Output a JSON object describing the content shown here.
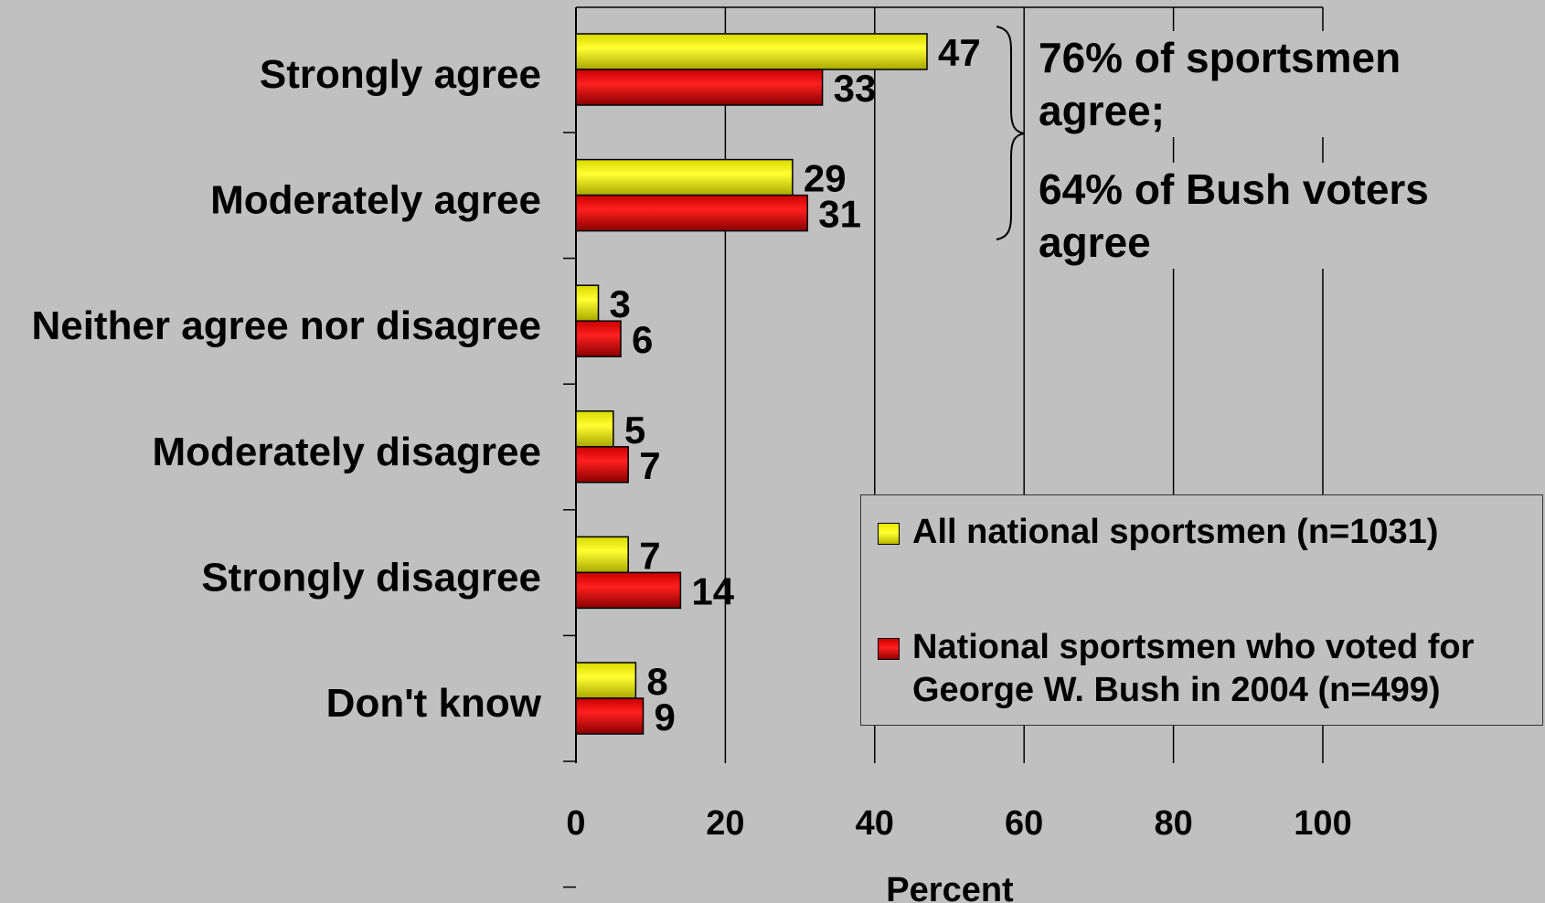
{
  "chart_data": {
    "type": "bar",
    "orientation": "horizontal",
    "categories": [
      "Strongly agree",
      "Moderately agree",
      "Neither agree nor disagree",
      "Moderately disagree",
      "Strongly disagree",
      "Don't know"
    ],
    "series": [
      {
        "name": "All national sportsmen (n=1031)",
        "values": [
          47,
          29,
          3,
          5,
          7,
          8
        ],
        "color": "#ffff00"
      },
      {
        "name": "National sportsmen who voted for\nGeorge W. Bush in 2004 (n=499)",
        "values": [
          33,
          31,
          6,
          7,
          14,
          9
        ],
        "color": "#ff0000"
      }
    ],
    "xlabel": "Percent",
    "xlim": [
      0,
      100
    ],
    "xticks": [
      0,
      20,
      40,
      60,
      80,
      100
    ],
    "grid": true,
    "legend_position": "bottom-right",
    "annotations": [
      "76% of sportsmen\nagree;",
      "64% of Bush voters\nagree"
    ]
  }
}
